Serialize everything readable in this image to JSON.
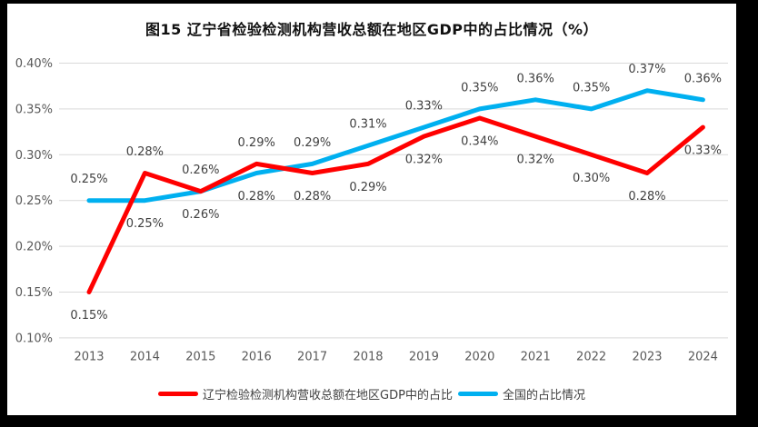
{
  "title": "图15 辽宁省检验检测机构营收总额在地区GDP中的占比情况（%）",
  "colors": {
    "frame": "#000000",
    "background": "#ffffff",
    "gridline": "#d9d9d9",
    "axis_text": "#595959",
    "label_text": "#404040",
    "title_text": "#111111",
    "liaoning_red": "#ff0000",
    "national_blue": "#00b0f0"
  },
  "chart_data": {
    "type": "line",
    "title": "图15 辽宁省检验检测机构营收总额在地区GDP中的占比情况（%）",
    "xlabel": "",
    "ylabel": "",
    "grid": true,
    "legend_position": "bottom",
    "categories": [
      "2013",
      "2014",
      "2015",
      "2016",
      "2017",
      "2018",
      "2019",
      "2020",
      "2021",
      "2022",
      "2023",
      "2024"
    ],
    "y_axis": {
      "unit": "%",
      "min": 0.1,
      "max": 0.4,
      "tick_values": [
        0.4,
        0.35,
        0.3,
        0.25,
        0.2,
        0.15,
        0.1
      ],
      "tick_labels": [
        "0.40%",
        "0.35%",
        "0.30%",
        "0.25%",
        "0.20%",
        "0.15%",
        "0.10%"
      ]
    },
    "series": [
      {
        "id": "liaoning",
        "name": "辽宁检验检测机构营收总额在地区GDP中的占比",
        "color": "#ff0000",
        "values": [
          0.15,
          0.28,
          0.26,
          0.29,
          0.28,
          0.29,
          0.32,
          0.34,
          0.32,
          0.3,
          0.28,
          0.33
        ],
        "labels": [
          "0.15%",
          "0.28%",
          "0.26%",
          "0.29%",
          "0.28%",
          "0.29%",
          "0.32%",
          "0.34%",
          "0.32%",
          "0.30%",
          "0.28%",
          "0.33%"
        ],
        "label_side": [
          "below",
          "above",
          "above",
          "above",
          "below",
          "below",
          "below",
          "below",
          "below",
          "below",
          "below",
          "below"
        ]
      },
      {
        "id": "national",
        "name": "全国的占比情况",
        "color": "#00b0f0",
        "values": [
          0.25,
          0.25,
          0.26,
          0.28,
          0.29,
          0.31,
          0.33,
          0.35,
          0.36,
          0.35,
          0.37,
          0.36
        ],
        "labels": [
          "0.25%",
          "0.25%",
          "0.26%",
          "0.28%",
          "0.29%",
          "0.31%",
          "0.33%",
          "0.35%",
          "0.36%",
          "0.35%",
          "0.37%",
          "0.36%"
        ],
        "label_side": [
          "above",
          "below",
          "below",
          "below",
          "above",
          "above",
          "above",
          "above",
          "above",
          "above",
          "above",
          "above"
        ]
      }
    ]
  }
}
